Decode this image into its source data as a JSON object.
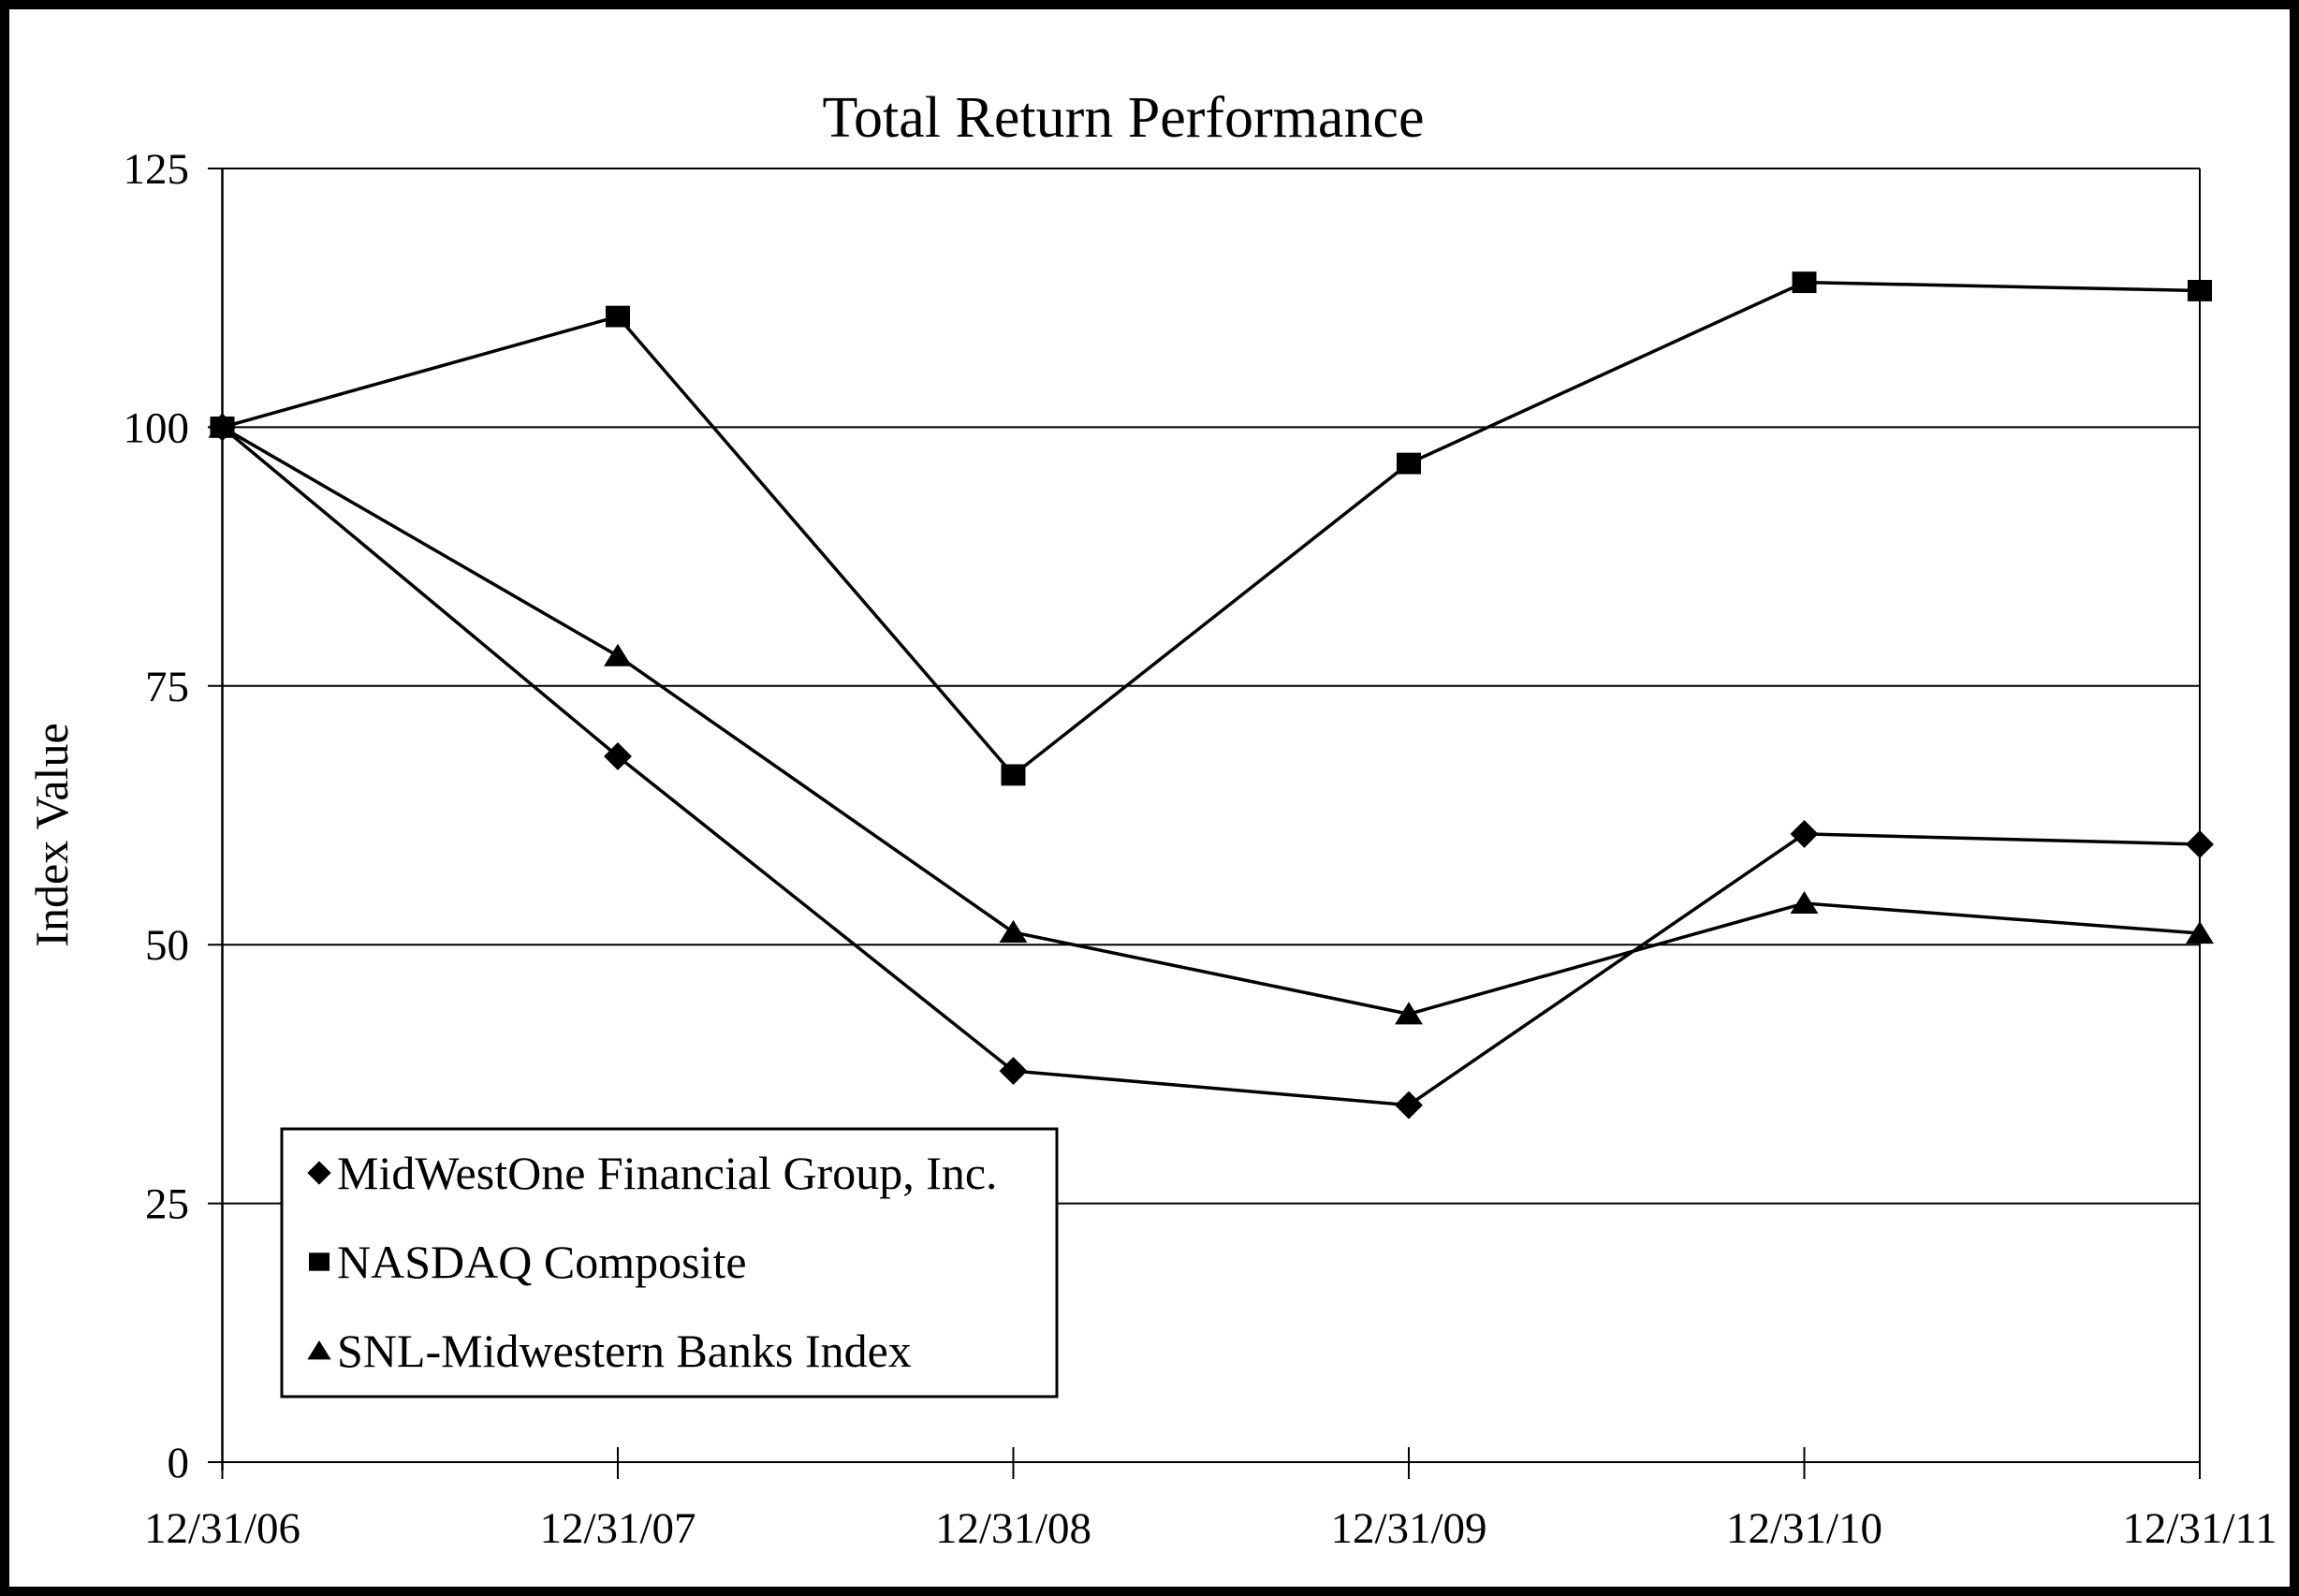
{
  "chart_data": {
    "type": "line",
    "title": "Total Return Performance",
    "ylabel": "Index Value",
    "xlabel": "",
    "categories": [
      "12/31/06",
      "12/31/07",
      "12/31/08",
      "12/31/09",
      "12/31/10",
      "12/31/11"
    ],
    "series": [
      {
        "name": "MidWestOne Financial Group, Inc.",
        "marker": "diamond",
        "values": [
          100,
          68.2,
          37.8,
          34.5,
          60.7,
          59.7
        ]
      },
      {
        "name": "NASDAQ Composite",
        "marker": "square",
        "values": [
          100,
          110.7,
          66.4,
          96.5,
          114.0,
          113.2
        ]
      },
      {
        "name": "SNL-Midwestern Banks Index",
        "marker": "triangle",
        "values": [
          100,
          77.9,
          51.2,
          43.3,
          54.0,
          51.1
        ]
      }
    ],
    "ylim": [
      0,
      125
    ],
    "yticks": [
      0,
      25,
      50,
      75,
      100,
      125
    ],
    "grid": "horizontal",
    "legend_position": "lower-left",
    "line_color": "#000000",
    "background": "#ffffff"
  }
}
